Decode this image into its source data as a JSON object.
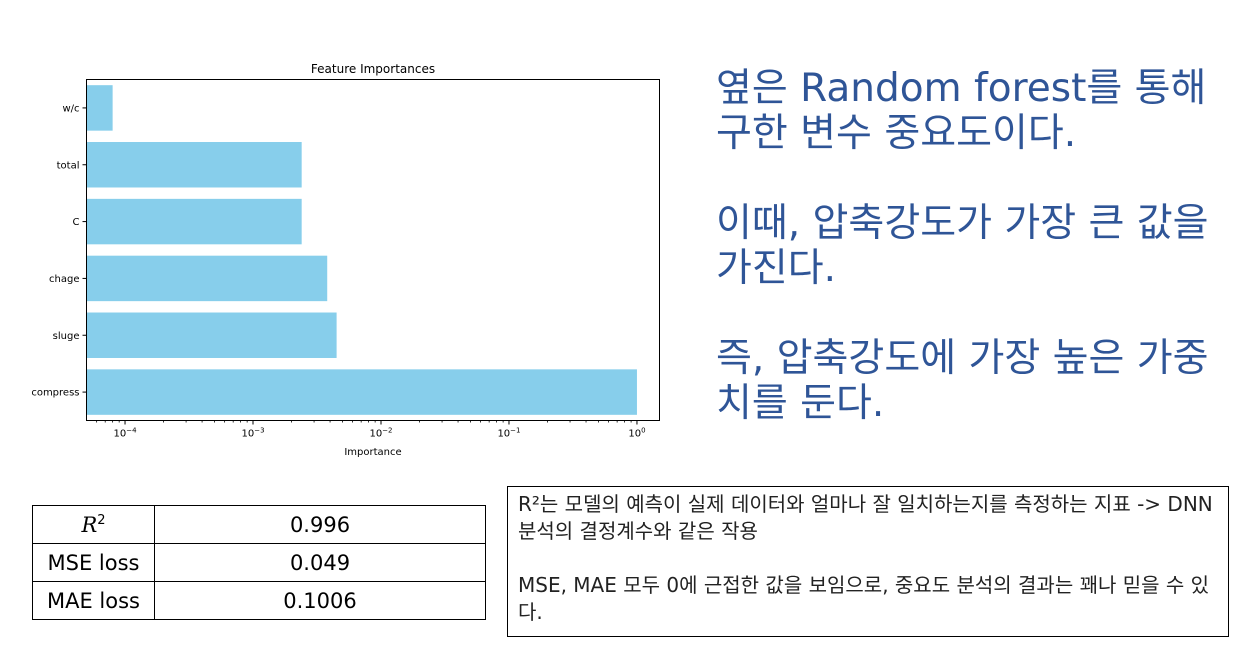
{
  "chart_data": {
    "type": "bar",
    "orientation": "horizontal",
    "title": "Feature Importances",
    "xlabel": "Importance",
    "ylabel": "",
    "xscale": "log",
    "xlim": [
      5e-05,
      1.5
    ],
    "grid": false,
    "legend": "none",
    "categories": [
      "compress",
      "sluge",
      "chage",
      "C",
      "total",
      "w/c"
    ],
    "values": [
      1.0,
      0.0045,
      0.0038,
      0.0024,
      0.0024,
      8e-05
    ],
    "x_ticks": [
      {
        "value": 0.0001,
        "base": "10",
        "exp": "−4"
      },
      {
        "value": 0.001,
        "base": "10",
        "exp": "−3"
      },
      {
        "value": 0.01,
        "base": "10",
        "exp": "−2"
      },
      {
        "value": 0.1,
        "base": "10",
        "exp": "−1"
      },
      {
        "value": 1,
        "base": "10",
        "exp": "0"
      }
    ],
    "bar_color": "#87ceeb"
  },
  "slide_text": {
    "paragraph1": "옆은 Random forest를 통해 구한 변수 중요도이다.",
    "paragraph2": "이때, 압축강도가 가장 큰 값을 가진다.",
    "paragraph3": "즉, 압축강도에 가장 높은 가중치를 둔다."
  },
  "metrics": {
    "r2_label_base": "R",
    "r2_label_exp": "2",
    "r2_value": "0.996",
    "mse_label": "MSE loss",
    "mse_value": "0.049",
    "mae_label": "MAE loss",
    "mae_value": "0.1006"
  },
  "note": {
    "paragraph1": "R²는 모델의 예측이 실제 데이터와 얼마나 잘 일치하는지를 측정하는 지표 -> DNN 분석의 결정계수와 같은 작용",
    "paragraph2": "MSE, MAE 모두 0에 근접한 값을 보임으로, 중요도 분석의 결과는 꽤나 믿을 수 있다."
  }
}
